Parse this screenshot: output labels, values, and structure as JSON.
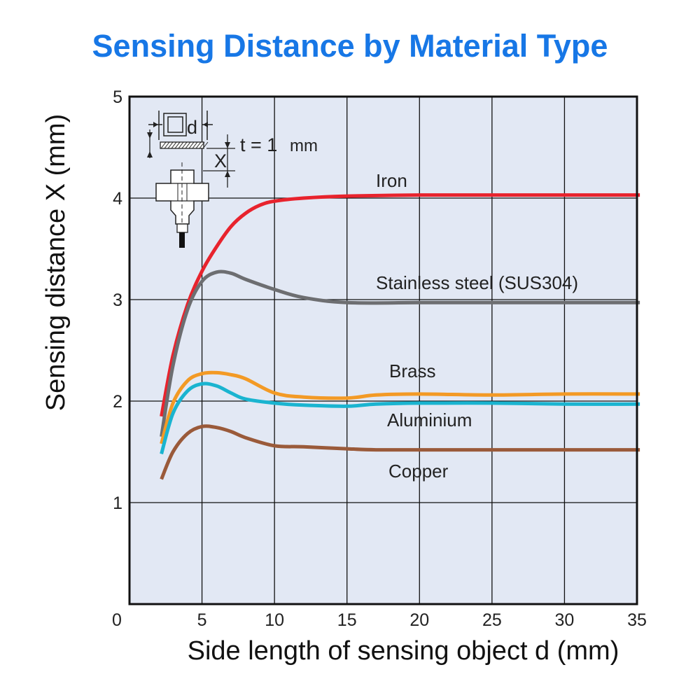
{
  "title": "Sensing Distance by Material Type",
  "chart_data": {
    "type": "line",
    "title": "Sensing Distance by Material Type",
    "xlabel": "Side length of sensing object d (mm)",
    "ylabel": "Sensing distance X (mm)",
    "xlim": [
      0,
      35
    ],
    "ylim": [
      0,
      5
    ],
    "xticks": [
      0,
      5,
      10,
      15,
      20,
      25,
      30,
      35
    ],
    "yticks": [
      1,
      2,
      3,
      4,
      5
    ],
    "grid": true,
    "series": [
      {
        "name": "Iron",
        "color": "#e8232d",
        "x": [
          2.2,
          3,
          4,
          5,
          6,
          7,
          8,
          9,
          10,
          12,
          15,
          20,
          25,
          30,
          35.2
        ],
        "y": [
          1.85,
          2.45,
          2.95,
          3.28,
          3.52,
          3.72,
          3.85,
          3.93,
          3.97,
          4.0,
          4.02,
          4.03,
          4.03,
          4.03,
          4.03
        ]
      },
      {
        "name": "Stainless steel (SUS304)",
        "color": "#6d6e71",
        "x": [
          2.2,
          3,
          4,
          5,
          6,
          7,
          8,
          10,
          12,
          15,
          20,
          25,
          30,
          35.2
        ],
        "y": [
          1.65,
          2.35,
          2.9,
          3.18,
          3.27,
          3.26,
          3.2,
          3.1,
          3.02,
          2.97,
          2.97,
          2.97,
          2.97,
          2.97
        ]
      },
      {
        "name": "Brass",
        "color": "#f39a25",
        "x": [
          2.2,
          3,
          4,
          5,
          6,
          7,
          8,
          10,
          12,
          15,
          17,
          20,
          25,
          30,
          35.2
        ],
        "y": [
          1.58,
          1.98,
          2.2,
          2.27,
          2.28,
          2.26,
          2.22,
          2.08,
          2.04,
          2.03,
          2.06,
          2.07,
          2.06,
          2.07,
          2.07
        ]
      },
      {
        "name": "Aluminium",
        "color": "#1ab4d0",
        "x": [
          2.2,
          3,
          4,
          5,
          6,
          7,
          8,
          10,
          12,
          15,
          17,
          20,
          25,
          30,
          35.2
        ],
        "y": [
          1.48,
          1.88,
          2.1,
          2.17,
          2.15,
          2.08,
          2.02,
          1.98,
          1.96,
          1.95,
          1.97,
          1.98,
          1.98,
          1.97,
          1.97
        ]
      },
      {
        "name": "Copper",
        "color": "#9a5a3a",
        "x": [
          2.2,
          3,
          4,
          5,
          6,
          7,
          8,
          10,
          12,
          15,
          17,
          20,
          25,
          30,
          35.2
        ],
        "y": [
          1.23,
          1.5,
          1.68,
          1.75,
          1.74,
          1.7,
          1.64,
          1.56,
          1.55,
          1.53,
          1.52,
          1.52,
          1.52,
          1.52,
          1.52
        ]
      }
    ],
    "series_labels": [
      "Iron",
      "Stainless steel (SUS304)",
      "Brass",
      "Aluminium",
      "Copper"
    ],
    "inset": {
      "d_label": "d",
      "t_label": "t = 1",
      "t_unit": "mm",
      "x_label": "X"
    }
  }
}
